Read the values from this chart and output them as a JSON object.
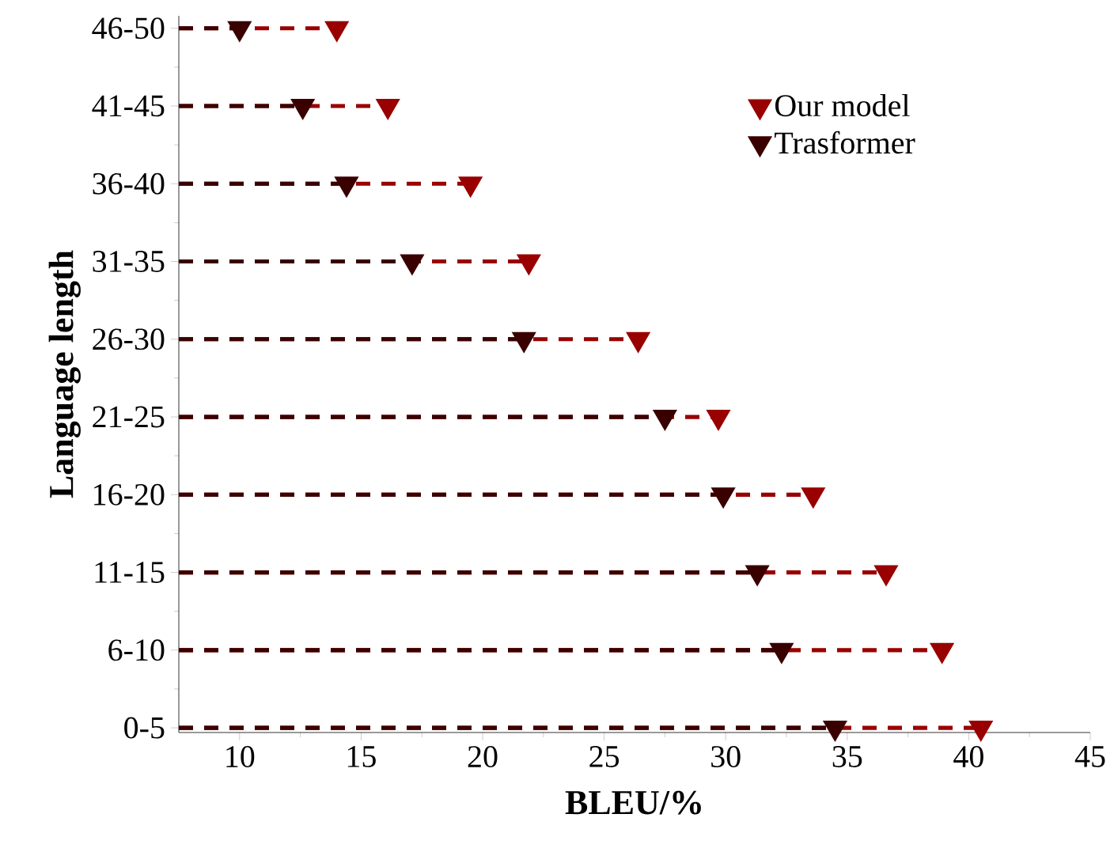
{
  "chart_data": {
    "type": "lollipop",
    "orientation": "horizontal",
    "xlabel": "BLEU/%",
    "ylabel": "Language length",
    "categories": [
      "46-50",
      "41-45",
      "36-40",
      "31-35",
      "26-30",
      "21-25",
      "16-20",
      "11-15",
      "6-10",
      "0-5"
    ],
    "series": [
      {
        "name": "Our model",
        "color": "#990000",
        "values": [
          14.0,
          16.1,
          19.5,
          21.9,
          26.4,
          29.7,
          33.6,
          36.6,
          38.9,
          40.5
        ]
      },
      {
        "name": "Trasformer",
        "color": "#3a0000",
        "values": [
          10.0,
          12.6,
          14.4,
          17.1,
          21.7,
          27.5,
          29.9,
          31.3,
          32.3,
          34.5
        ]
      }
    ],
    "xlim": [
      7.5,
      45
    ],
    "xticks": [
      10,
      15,
      20,
      25,
      30,
      35,
      40,
      45
    ],
    "marker": "triangle",
    "line_style": "dashed",
    "legend": "top right",
    "grid": false
  }
}
